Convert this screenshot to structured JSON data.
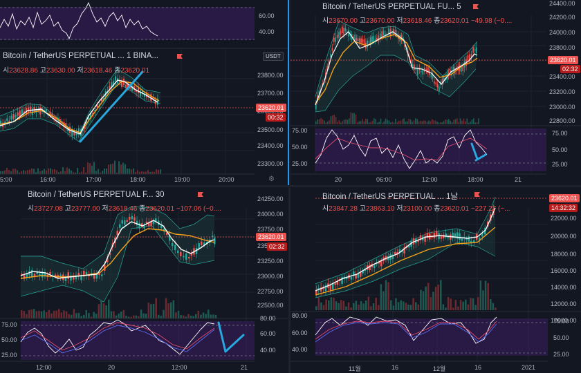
{
  "colors": {
    "bg": "#131722",
    "up": "#26a69a",
    "down": "#ef5350",
    "ma_fast": "#ffffff",
    "ma_slow": "#f7a21b",
    "band": "#1f6f62",
    "rsi_fill": "#3b1e63",
    "annotation": "#29a8e0"
  },
  "panes": {
    "tl": {
      "title": "Bitcoin / TetherUS PERPETUAL ...  1  BINA...",
      "ohlc": [
        {
          "k": "시",
          "v": "23628.86"
        },
        {
          "k": "고",
          "v": "23630.00"
        },
        {
          "k": "저",
          "v": "23618.46"
        },
        {
          "k": "종",
          "v": "23620.01"
        }
      ],
      "usdt": "USDT",
      "price_ticks": [
        "23800.00",
        "23700.00",
        "23600.00",
        "23500.00",
        "23400.00",
        "23300.00"
      ],
      "rsi_ticks": [
        "60.00",
        "40.00"
      ],
      "price_tag": "23620.01",
      "time_tag": "00:32",
      "x_ticks": [
        "5:00",
        "16:00",
        "17:00",
        "18:00",
        "19:00",
        "20:00"
      ]
    },
    "tr": {
      "title": "Bitcoin / TetherUS PERPETUAL FU...  5",
      "ohlc": [
        {
          "k": "시",
          "v": "23670.00"
        },
        {
          "k": "고",
          "v": "23670.00"
        },
        {
          "k": "저",
          "v": "23618.46"
        },
        {
          "k": "종",
          "v": "23620.01"
        },
        {
          "k": "",
          "v": "−49.98 (−0...."
        }
      ],
      "price_ticks": [
        "24400.00",
        "24200.00",
        "24000.00",
        "23800.00",
        "23600.00",
        "23400.00",
        "23200.00",
        "23000.00",
        "22800.00"
      ],
      "rsi_ticks": [
        "75.00",
        "50.00",
        "25.00"
      ],
      "rsi_right_ticks": [
        "75.00",
        "50.00",
        "25.00"
      ],
      "price_tag": "23620.01",
      "time_tag": "02:32",
      "x_ticks": [
        "20",
        "06:00",
        "12:00",
        "18:00",
        "21"
      ]
    },
    "bl": {
      "title": "Bitcoin / TetherUS PERPETUAL F...  30",
      "ohlc": [
        {
          "k": "시",
          "v": "23727.08"
        },
        {
          "k": "고",
          "v": "23777.00"
        },
        {
          "k": "저",
          "v": "23618.46"
        },
        {
          "k": "종",
          "v": "23620.01"
        },
        {
          "k": "",
          "v": "−107.06 (−0...."
        }
      ],
      "price_ticks": [
        "24250.00",
        "24000.00",
        "23750.00",
        "23500.00",
        "23250.00",
        "23000.00",
        "22750.00",
        "22500.00"
      ],
      "rsi_ticks": [
        "75.00",
        "50.00",
        "25.00"
      ],
      "rsi_right_ticks": [
        "80.00",
        "60.00",
        "40.00"
      ],
      "price_tag": "23620.01",
      "time_tag": "02:32",
      "x_ticks": [
        "12:00",
        "20",
        "12:00",
        "21"
      ]
    },
    "br": {
      "title": "Bitcoin / TetherUS PERPETUAL ...  1날",
      "ohlc": [
        {
          "k": "시",
          "v": "23847.28"
        },
        {
          "k": "고",
          "v": "23863.10"
        },
        {
          "k": "저",
          "v": "23100.00"
        },
        {
          "k": "종",
          "v": "23620.01"
        },
        {
          "k": "",
          "v": "−227.27 (−..."
        }
      ],
      "price_ticks": [
        "22000.00",
        "20000.00",
        "18000.00",
        "16000.00",
        "14000.00",
        "12000.00",
        "10000.00"
      ],
      "rsi_ticks": [
        "80.00",
        "60.00",
        "40.00"
      ],
      "rsi_right_ticks": [
        "75.00",
        "50.00",
        "25.00"
      ],
      "price_tag": "23620.01",
      "time_tag": "14:32:32",
      "x_ticks": [
        "11월",
        "16",
        "12월",
        "16",
        "2021"
      ]
    }
  }
}
